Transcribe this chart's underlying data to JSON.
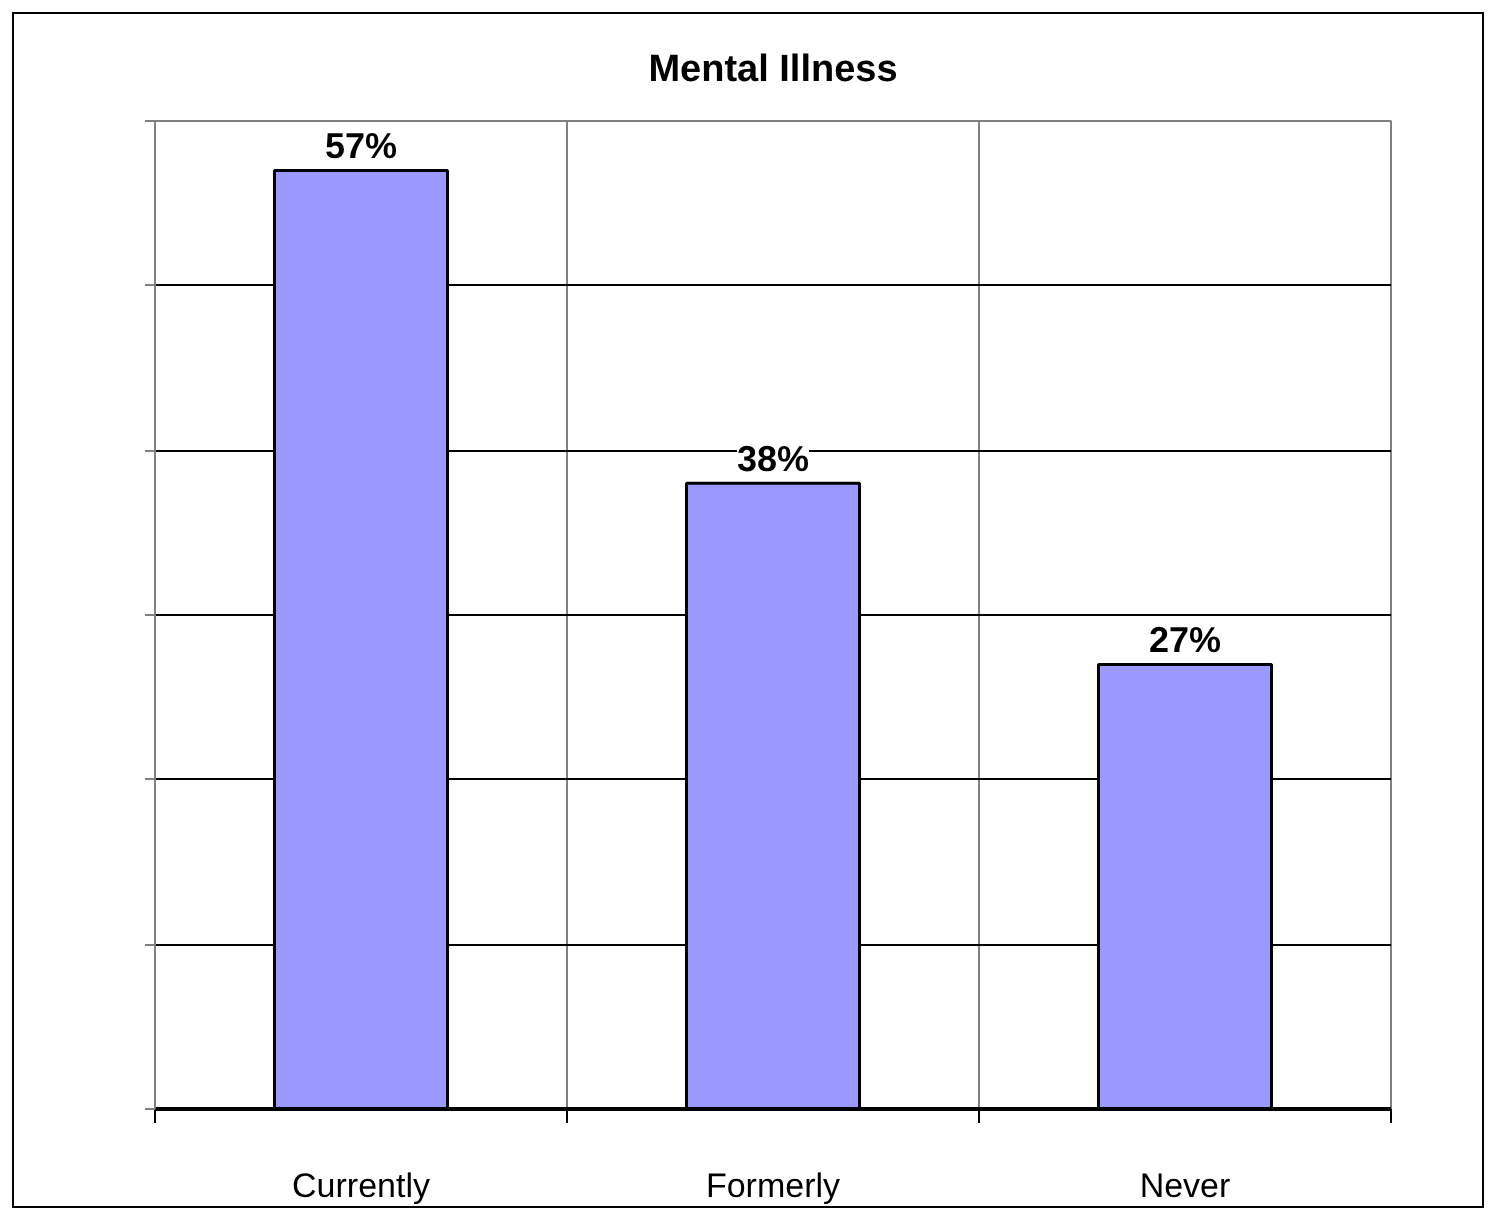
{
  "chart_data": {
    "type": "bar",
    "title": "Mental Illness",
    "categories": [
      "Currently",
      "Formerly",
      "Never"
    ],
    "values": [
      57,
      38,
      27
    ],
    "color": "#9999ff",
    "value_labels": [
      "57%",
      "38%",
      "27%"
    ],
    "ylim": [
      0,
      60
    ],
    "yticks": [
      {
        "value": 0,
        "label": null
      },
      {
        "value": 10,
        "label": null
      },
      {
        "value": 20,
        "label": null
      },
      {
        "value": 30,
        "label": null
      },
      {
        "value": 40,
        "label": null
      },
      {
        "value": 50,
        "label": null
      },
      {
        "value": 60,
        "label": null
      }
    ],
    "grid": true,
    "tick_labels": "x"
  }
}
